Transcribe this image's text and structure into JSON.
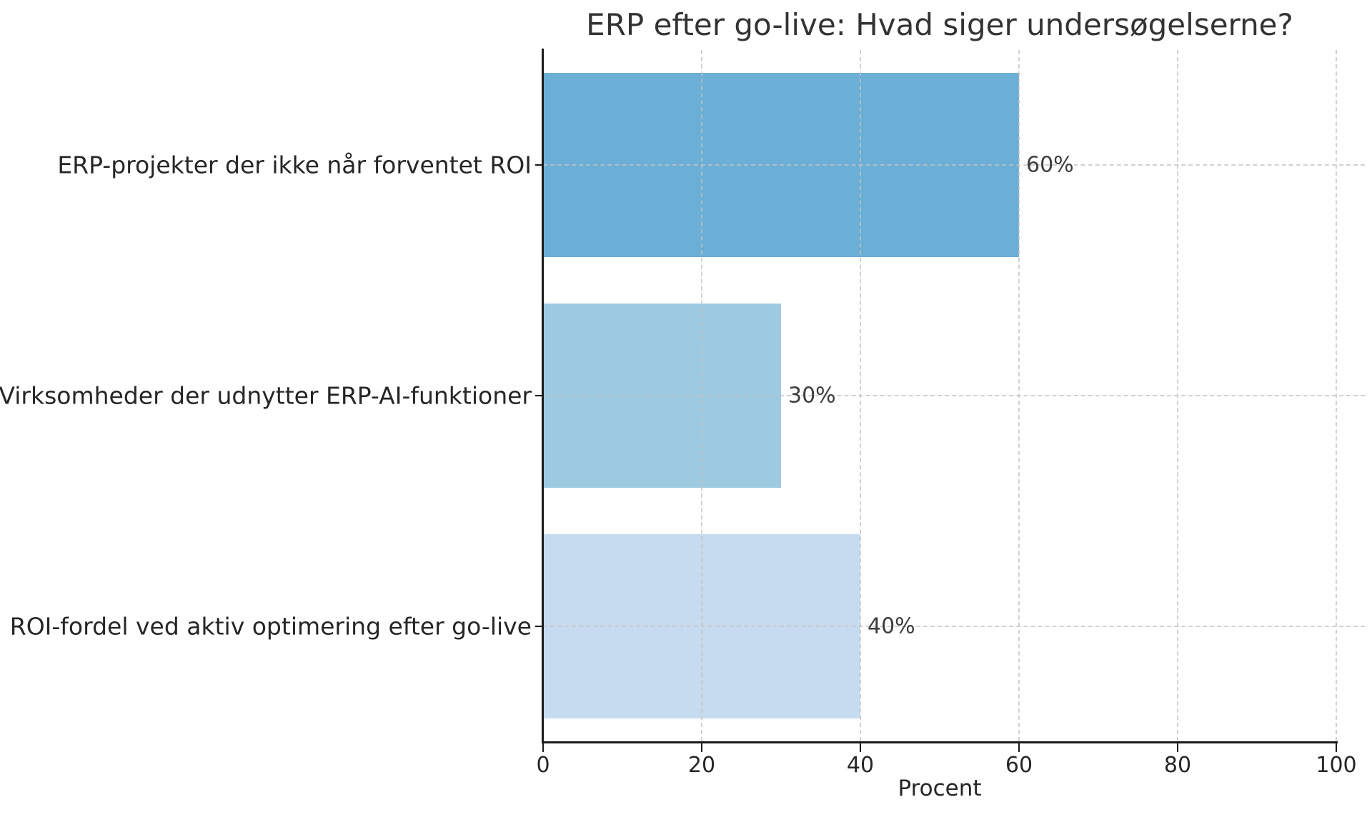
{
  "chart_data": {
    "type": "bar",
    "orientation": "horizontal",
    "title": "ERP efter go-live: Hvad siger undersøgelserne?",
    "xlabel": "Procent",
    "ylabel": "",
    "categories": [
      "ERP-projekter der ikke når forventet ROI",
      "Virksomheder der udnytter ERP-AI-funktioner",
      "ROI-fordel ved aktiv optimering efter go-live"
    ],
    "values": [
      60,
      30,
      40
    ],
    "value_labels": [
      "60%",
      "30%",
      "40%"
    ],
    "bar_colors": [
      "#6baed6",
      "#9ecae1",
      "#c6dbef"
    ],
    "xlim": [
      0,
      100
    ],
    "xticks": [
      0,
      20,
      40,
      60,
      80,
      100
    ],
    "xtick_labels": [
      "0",
      "20",
      "40",
      "60",
      "80",
      "100"
    ],
    "grid": {
      "vertical": true,
      "horizontal": true,
      "style": "dashed",
      "color": "#c4c4c4"
    },
    "legend_position": "none",
    "axis_color": "#1a1a1a",
    "title_color": "#333333",
    "label_color": "#262626",
    "value_label_color": "#3d3d3d",
    "background_color": "#ffffff"
  }
}
